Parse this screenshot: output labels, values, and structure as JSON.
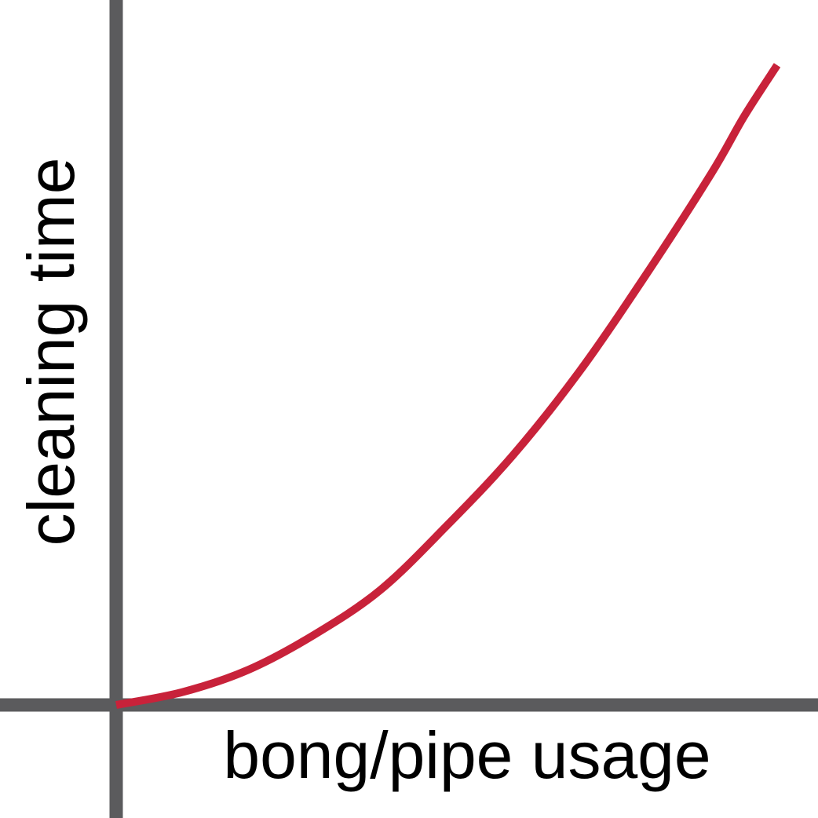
{
  "chart_data": {
    "type": "line",
    "title": "",
    "xlabel": "bong/pipe usage",
    "ylabel": "cleaning time",
    "grid": false,
    "legend": "none",
    "ticks": "none",
    "xlim": [
      0,
      1
    ],
    "ylim": [
      0,
      1
    ],
    "series": [
      {
        "x": [
          0.0,
          0.1,
          0.2,
          0.3,
          0.4,
          0.5,
          0.6,
          0.7,
          0.8,
          0.9,
          0.95,
          1.0
        ],
        "y": [
          0.0,
          0.02,
          0.055,
          0.11,
          0.18,
          0.28,
          0.39,
          0.52,
          0.67,
          0.83,
          0.92,
          1.0
        ]
      }
    ],
    "colors": {
      "axis": "#5b5b5d",
      "line": "#c8223a",
      "text": "#000000"
    }
  }
}
